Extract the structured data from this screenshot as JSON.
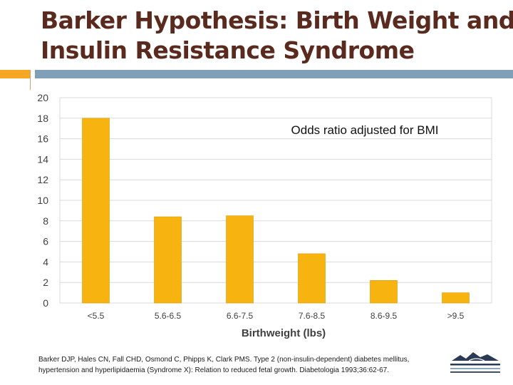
{
  "slide": {
    "title_line1": "Barker Hypothesis: Birth Weight and",
    "title_line2": "Insulin Resistance Syndrome",
    "citation_line1": "Barker DJP, Hales CN, Fall CHD, Osmond C, Phipps K, Clark PMS. Type 2 (non-insulin-dependent) diabetes mellitus,",
    "citation_line2": "hypertension and hyperlipidaemia (Syndrome X): Relation to reduced fetal growth. Diabetologia 1993;36:62-67.",
    "accent_colors": {
      "orange": "#f5a623",
      "blue": "#7e9fb7"
    },
    "logo_icon": "health-services-logo-icon"
  },
  "chart_data": {
    "type": "bar",
    "title": "",
    "annotation": "Odds ratio adjusted for BMI",
    "xlabel": "Birthweight (lbs)",
    "ylabel": "",
    "categories": [
      "<5.5",
      "5.6-6.5",
      "6.6-7.5",
      "7.6-8.5",
      "8.6-9.5",
      ">9.5"
    ],
    "values": [
      18,
      8.4,
      8.5,
      4.8,
      2.2,
      1.0
    ],
    "ylim": [
      0,
      20
    ],
    "yticks": [
      0,
      2,
      4,
      6,
      8,
      10,
      12,
      14,
      16,
      18,
      20
    ],
    "grid": true,
    "bar_color": "#f7b30f",
    "legend": "none"
  }
}
